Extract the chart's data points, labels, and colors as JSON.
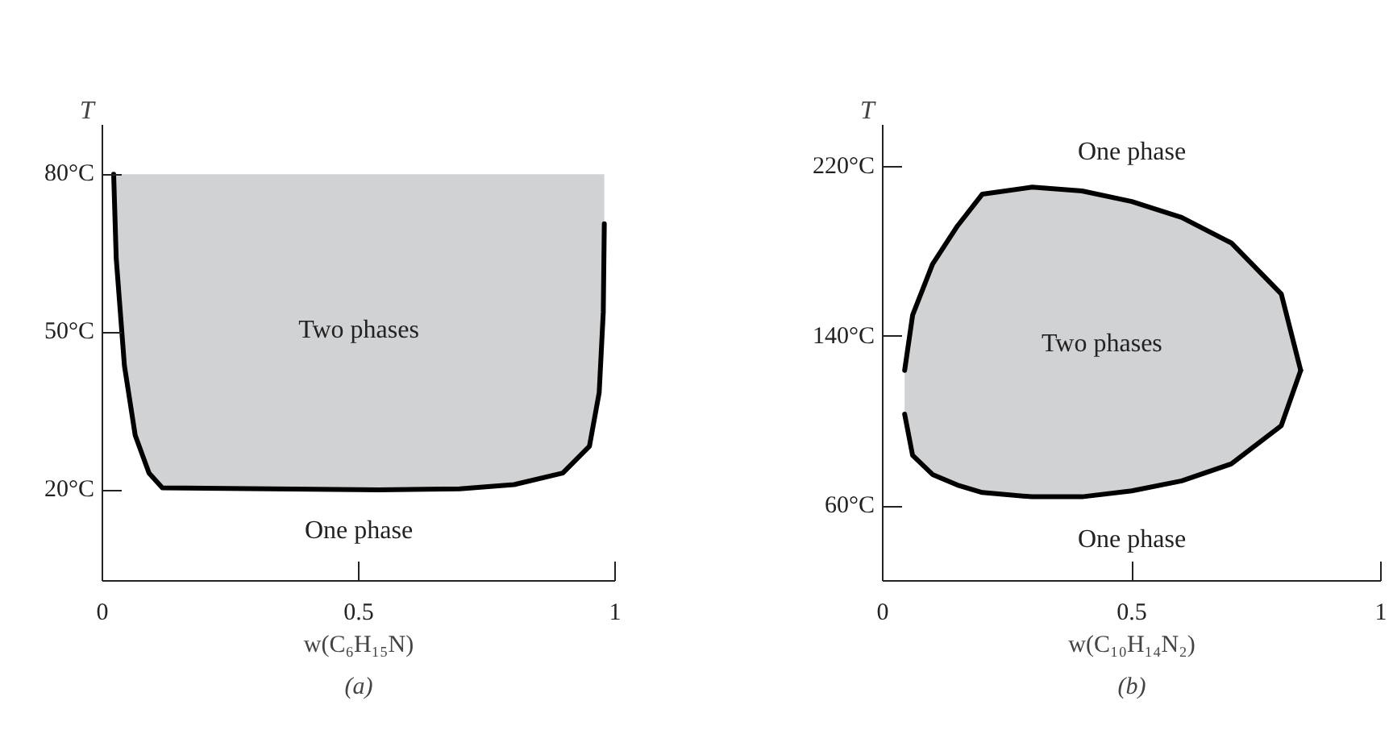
{
  "chart_data": [
    {
      "type": "line",
      "xlabel": "w(C₆H₁₅N)",
      "ylabel": "T",
      "xlim": [
        0,
        1
      ],
      "ylim": [
        2.7,
        89.4
      ],
      "xticks": [
        0,
        0.5,
        1
      ],
      "yticks": [
        {
          "value": 20,
          "label": "20°C"
        },
        {
          "value": 50,
          "label": "50°C"
        },
        {
          "value": 80,
          "label": "80°C"
        }
      ],
      "grid": false,
      "series": [
        {
          "color": "#000000",
          "x": [
            0.022,
            0.027,
            0.043,
            0.064,
            0.091,
            0.117,
            0.328,
            0.539,
            0.697,
            0.803,
            0.898,
            0.95,
            0.969,
            0.977,
            0.979
          ],
          "values": [
            80,
            64,
            43.6,
            30.4,
            23.2,
            20.4,
            20.2,
            20,
            20.2,
            21,
            23.2,
            28.3,
            38.5,
            53.8,
            70.6
          ],
          "lower": [
            80,
            64,
            43.6,
            30.4,
            23.2,
            20.4,
            20.2,
            20,
            20.2,
            21,
            23.2,
            28.3,
            38.5,
            53.8,
            70.6
          ],
          "upper": [
            80,
            80,
            80,
            80,
            80,
            80,
            80,
            80,
            80,
            80,
            80,
            80,
            80,
            80,
            80
          ]
        }
      ],
      "annotations": [
        "Two phases",
        "One phase",
        "(a)"
      ]
    },
    {
      "type": "line",
      "xlabel": "w(C₁₀H₁₄N₂)",
      "ylabel": "T",
      "xlim": [
        0,
        1
      ],
      "ylim": [
        24.9,
        239.6
      ],
      "xticks": [
        0,
        0.5,
        1
      ],
      "yticks": [
        {
          "value": 60,
          "label": "60°C"
        },
        {
          "value": 140,
          "label": "140°C"
        },
        {
          "value": 220,
          "label": "220°C"
        }
      ],
      "grid": false,
      "series": [
        {
          "color": "#000000",
          "x": [
            0.044,
            0.06,
            0.1,
            0.15,
            0.2,
            0.3,
            0.4,
            0.5,
            0.6,
            0.7,
            0.8,
            0.839
          ],
          "values": [
            124,
            150,
            174,
            192,
            207,
            210.3,
            208.5,
            203.5,
            196,
            184,
            160,
            124
          ],
          "lower": [
            103.4,
            84,
            75,
            70,
            66.5,
            64.5,
            64.5,
            67.3,
            72,
            80,
            98,
            124
          ],
          "upper": [
            124,
            150,
            174,
            192,
            207,
            210.3,
            208.5,
            203.5,
            196,
            184,
            160,
            124
          ]
        },
        {
          "color": "#000000",
          "x": [
            0.044,
            0.06,
            0.1,
            0.15,
            0.2,
            0.3,
            0.4,
            0.5,
            0.6,
            0.7,
            0.8,
            0.839
          ],
          "values": [
            103.4,
            84,
            75,
            70,
            66.5,
            64.5,
            64.5,
            67.3,
            72,
            80,
            98,
            124
          ]
        }
      ],
      "annotations": [
        "One phase",
        "Two phases",
        "One phase",
        "(b)"
      ]
    }
  ]
}
